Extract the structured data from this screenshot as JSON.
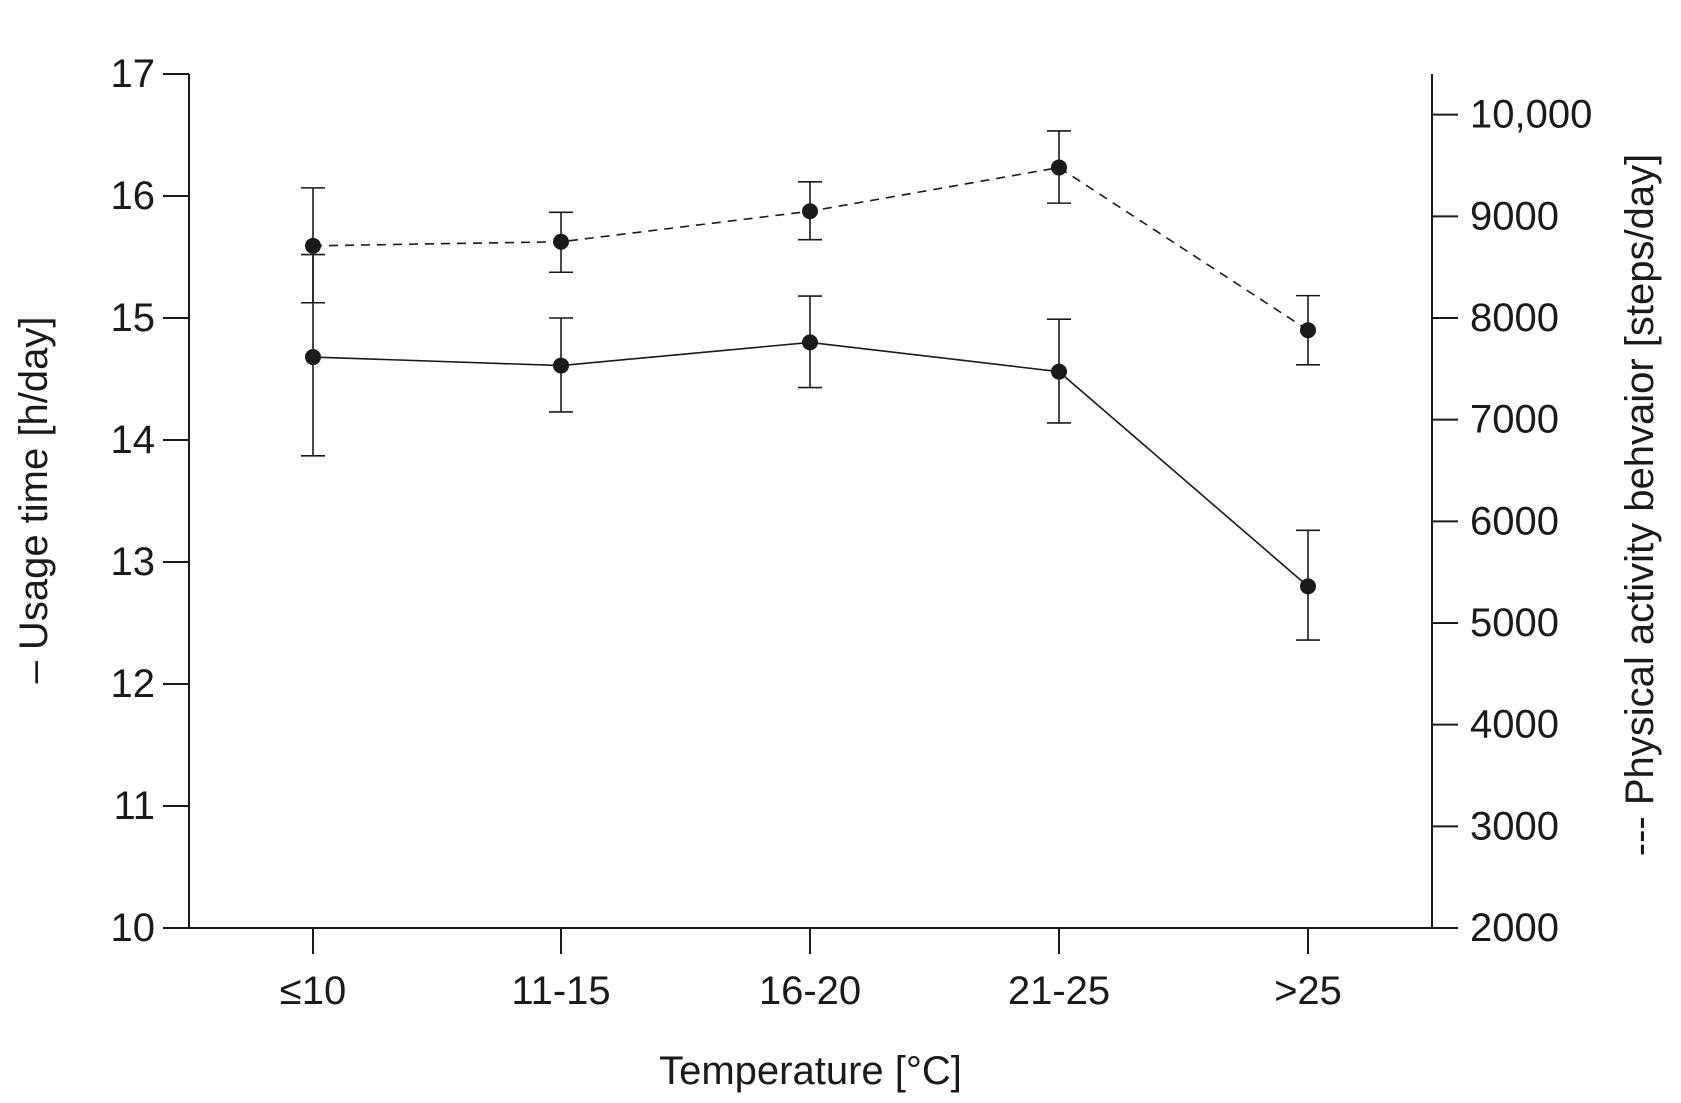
{
  "chart_data": {
    "type": "line",
    "categories": [
      "≤10",
      "11-15",
      "16-20",
      "21-25",
      ">25"
    ],
    "xlabel": "Temperature [°C]",
    "left_axis": {
      "label": "– Usage time [h/day]",
      "range": [
        10,
        17
      ],
      "ticks": [
        10,
        11,
        12,
        13,
        14,
        15,
        16,
        17
      ],
      "tick_labels": [
        "10",
        "11",
        "12",
        "13",
        "14",
        "15",
        "16",
        "17"
      ]
    },
    "right_axis": {
      "label": "--- Physical activity behvaior [steps/day]",
      "range": [
        2000,
        10400
      ],
      "ticks": [
        2000,
        3000,
        4000,
        5000,
        6000,
        7000,
        8000,
        9000,
        10000
      ],
      "tick_labels": [
        "2000",
        "3000",
        "4000",
        "5000",
        "6000",
        "7000",
        "8000",
        "9000",
        "10,000"
      ]
    },
    "series": [
      {
        "name": "Usage time [h/day]",
        "axis": "left",
        "line_style": "solid",
        "values": [
          14.68,
          14.61,
          14.8,
          14.56,
          12.8
        ],
        "error_low": [
          13.87,
          14.23,
          14.43,
          14.14,
          12.36
        ],
        "error_high": [
          15.52,
          15.0,
          15.18,
          14.99,
          13.26
        ]
      },
      {
        "name": "Physical activity behvaior [steps/day]",
        "axis": "right",
        "line_style": "dashed",
        "values": [
          8710,
          8750,
          9050,
          9480,
          7880
        ],
        "error_low": [
          8150,
          8450,
          8770,
          9130,
          7540
        ],
        "error_high": [
          9280,
          9040,
          9340,
          9840,
          8220
        ]
      }
    ],
    "grid": false,
    "legend": "none"
  }
}
